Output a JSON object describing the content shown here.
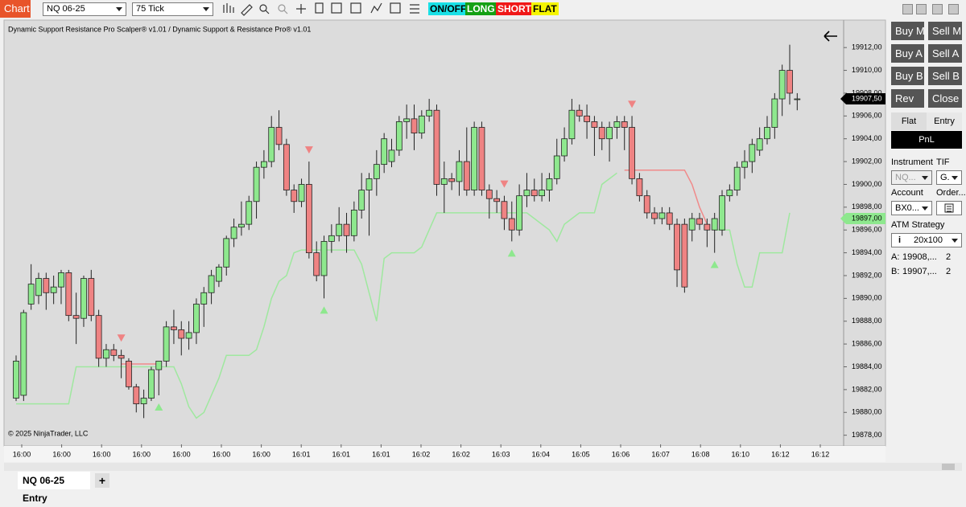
{
  "toolbar": {
    "app": "Chart",
    "instrument": "NQ 06-25",
    "interval": "75 Tick",
    "buttons": [
      "ON/OFF",
      "LONG",
      "SHORT",
      "FLAT"
    ]
  },
  "chart_data": {
    "type": "candlestick",
    "title": "Dynamic Support Resistance Pro Scalper® v1.01 / Dynamic Support & Resistance Pro® v1.01",
    "copyright": "© 2025 NinjaTrader, LLC",
    "up_color": "#8ee88e",
    "down_color": "#ef8383",
    "open": [
      19881.25,
      19881.5,
      19889.5,
      19890.25,
      19891.75,
      19890.5,
      19891,
      19892.25,
      19888.5,
      19888.25,
      19891.75,
      19888.5,
      19884.75,
      19885.5,
      19885,
      19884.5,
      19882.25,
      19880.75,
      19881.25,
      19883.75,
      19884.5,
      19887.5,
      19887.25,
      19886.5,
      19887,
      19889.5,
      19890.5,
      19891.5,
      19892.75,
      19895.25,
      19896.25,
      19896.5,
      19898.5,
      19901.5,
      19902,
      19905,
      19903.5,
      19899.5,
      19898.5,
      19900,
      19894,
      19892,
      19895,
      19895.5,
      19896.5,
      19895.5,
      19897.75,
      19899.5,
      19900.5,
      19901.75,
      19902,
      19903,
      19905.5,
      19905.75,
      19904.5,
      19906,
      19906.5,
      19900,
      19900.5,
      19900.25,
      19902,
      19899.5,
      19905,
      19899.5,
      19898.75,
      19898.5,
      19897,
      19896,
      19899,
      19899.5,
      19899,
      19899.5,
      19900.5,
      19902.5,
      19904,
      19906.5,
      19906,
      19905.5,
      19905,
      19904,
      19905,
      19905.5,
      19905,
      19900.5,
      19899,
      19897.5,
      19897,
      19897.5,
      19896.5,
      19896.5,
      19896,
      19897,
      19896.5,
      19896,
      19896,
      19899,
      19899.5,
      19901.5,
      19902,
      19903,
      19904,
      19905,
      19907.5,
      19910,
      19907.5
    ],
    "high": [
      19885,
      19889,
      19893,
      19892.25,
      19892.25,
      19892,
      19892.5,
      19892.5,
      19890.5,
      19892,
      19892.5,
      19889,
      19886,
      19886,
      19885.5,
      19884.75,
      19882.5,
      19882,
      19884,
      19884.5,
      19888,
      19889,
      19888,
      19888,
      19890,
      19891,
      19892.5,
      19893,
      19895.5,
      19897,
      19898.5,
      19899,
      19902,
      19903,
      19906,
      19906.5,
      19904,
      19900,
      19900.5,
      19902,
      19895,
      19895.5,
      19896.5,
      19898,
      19897.5,
      19898.5,
      19901,
      19901,
      19903,
      19904.5,
      19904,
      19906,
      19907,
      19907,
      19906.5,
      19907.5,
      19907,
      19902,
      19901,
      19903,
      19905,
      19905.5,
      19905.5,
      19900,
      19899.5,
      19899,
      19898.5,
      19900,
      19901,
      19900.5,
      19901,
      19901,
      19904,
      19905,
      19907.5,
      19907,
      19907,
      19906,
      19905.5,
      19905.5,
      19906,
      19906,
      19906,
      19901,
      19899.5,
      19898,
      19898,
      19898,
      19897,
      19897,
      19897.5,
      19897.5,
      19897,
      19897.5,
      19899.5,
      19900,
      19902,
      19903,
      19904,
      19905,
      19906,
      19908,
      19910.5,
      19912.25,
      19908
    ],
    "low": [
      19881,
      19881,
      19889,
      19889.5,
      19889,
      19889.5,
      19889.5,
      19888,
      19886,
      19887.5,
      19888,
      19884,
      19884,
      19884.5,
      19883,
      19882,
      19880,
      19879.5,
      19881,
      19881.5,
      19884,
      19886,
      19885,
      19885.5,
      19886,
      19887.5,
      19889.5,
      19891,
      19892,
      19894.5,
      19895.5,
      19896,
      19897,
      19900.5,
      19901.5,
      19903,
      19899,
      19897.5,
      19898,
      19893.5,
      19891.5,
      19890,
      19894,
      19895,
      19894,
      19895,
      19897,
      19895.5,
      19899,
      19901,
      19901.5,
      19902.5,
      19904,
      19903,
      19904,
      19905.5,
      19899,
      19897.5,
      19899.5,
      19899,
      19899,
      19899,
      19899,
      19897,
      19897.5,
      19896,
      19895,
      19895.5,
      19898,
      19898.5,
      19898.5,
      19898.5,
      19900,
      19902,
      19903.5,
      19905.5,
      19904,
      19902.5,
      19903,
      19902,
      19904,
      19903,
      19900,
      19898.5,
      19897,
      19896.5,
      19896.5,
      19896,
      19891,
      19890.5,
      19895,
      19896,
      19894.5,
      19894,
      19895.5,
      19898.5,
      19899,
      19900.5,
      19901,
      19902.5,
      19903.5,
      19904,
      19906,
      19907,
      19906.5
    ],
    "close": [
      19884.5,
      19888.75,
      19891.25,
      19891.75,
      19890.5,
      19891,
      19892.25,
      19888.5,
      19888.25,
      19891.75,
      19888.5,
      19884.75,
      19885.5,
      19885,
      19884.75,
      19882.25,
      19880.75,
      19881.25,
      19883.75,
      19884.5,
      19887.5,
      19887.25,
      19886.5,
      19887,
      19889.5,
      19890.5,
      19892,
      19892.75,
      19895.25,
      19896.25,
      19896.5,
      19898.5,
      19901.5,
      19902,
      19905,
      19903.5,
      19899.5,
      19898.5,
      19900,
      19894,
      19892,
      19895,
      19895.5,
      19896.5,
      19895.5,
      19897.75,
      19899.5,
      19900.5,
      19901.75,
      19904,
      19903,
      19905.5,
      19905.75,
      19904.5,
      19906,
      19906.5,
      19900,
      19900.5,
      19900.25,
      19902,
      19899.5,
      19905,
      19899.5,
      19898.75,
      19898.5,
      19897,
      19896,
      19899,
      19899.5,
      19899,
      19899.5,
      19900.5,
      19902.5,
      19904,
      19906.5,
      19906,
      19905.5,
      19905,
      19904,
      19905,
      19905.5,
      19905,
      19900.5,
      19899,
      19897.5,
      19897,
      19897.5,
      19896.5,
      19892.5,
      19891,
      19897,
      19896.5,
      19896,
      19897,
      19899,
      19899.5,
      19901.5,
      19902,
      19903.5,
      19904,
      19905,
      19907.5,
      19910,
      19908,
      19907.5
    ],
    "support_color": "#9fe89f",
    "support_values": [
      19880.75,
      19880.75,
      19880.75,
      19880.75,
      19880.75,
      19880.75,
      19880.75,
      19880.75,
      19884,
      19884,
      19884,
      19884,
      19884,
      19884,
      19884,
      19884,
      19884,
      19884,
      19884,
      19884,
      19884,
      19884,
      19882.5,
      19880.5,
      19879.5,
      19880,
      19881.5,
      19883,
      19885,
      19885,
      19885,
      19885,
      19885.5,
      19887.5,
      19890,
      19891.5,
      19892,
      19894,
      19894.25,
      19894.25,
      19894.25,
      19894.25,
      19894.25,
      19894.25,
      19894.25,
      19894.25,
      19893,
      19890.5,
      19888,
      19893.5,
      19894,
      19894,
      19894,
      19894,
      19894.5,
      19896,
      19897.5,
      19897.5,
      19897.5,
      19897.5,
      19897.5,
      19897.5,
      19897.5,
      19897.5,
      19897.5,
      19897.5,
      19897.5,
      19897.5,
      19897.5,
      19897,
      19896.5,
      19896,
      19895,
      19896.5,
      19897,
      19897.5,
      19897.5,
      19897.5,
      19900,
      19900.5,
      19901,
      null,
      null,
      null,
      null,
      null,
      null,
      null,
      null,
      null,
      null,
      null,
      null,
      19896,
      19896,
      19896,
      19893,
      19891,
      19891,
      19894,
      19894,
      19894,
      19894,
      19897.5,
      null
    ],
    "resistance_color": "#f08a8a",
    "resistance_values": [
      null,
      null,
      null,
      null,
      null,
      null,
      null,
      null,
      null,
      null,
      null,
      null,
      null,
      null,
      19884.25,
      19884.25,
      19884.25,
      19884.25,
      19884.25,
      19884.25,
      null,
      null,
      null,
      null,
      null,
      null,
      null,
      null,
      null,
      null,
      null,
      null,
      null,
      null,
      null,
      null,
      null,
      null,
      null,
      null,
      null,
      null,
      null,
      null,
      null,
      null,
      null,
      null,
      null,
      null,
      null,
      null,
      null,
      null,
      null,
      null,
      null,
      null,
      null,
      null,
      null,
      null,
      null,
      null,
      null,
      null,
      null,
      null,
      null,
      null,
      null,
      null,
      null,
      null,
      null,
      null,
      null,
      null,
      null,
      null,
      null,
      19901.25,
      19901.25,
      19901.25,
      19901.25,
      19901.25,
      19901.25,
      19901.25,
      19901.25,
      19901.25,
      19900,
      19898,
      19896.5,
      null,
      null,
      null,
      null,
      null,
      null,
      null,
      null,
      null,
      null,
      null,
      null
    ],
    "short_color": "#ef8383",
    "long_color": "#8ee88e",
    "short_signals": [
      14,
      39,
      65,
      82
    ],
    "long_signals": [
      19,
      41,
      66,
      93
    ],
    "x_labels": [
      "16:00",
      "16:00",
      "16:00",
      "16:00",
      "16:00",
      "16:00",
      "16:00",
      "16:01",
      "16:01",
      "16:01",
      "16:02",
      "16:02",
      "16:03",
      "16:04",
      "16:05",
      "16:06",
      "16:07",
      "16:08",
      "16:10",
      "16:12",
      "16:12"
    ],
    "ylim": [
      19877.2,
      19913
    ],
    "yticks": [
      {
        "value": 19878,
        "label": "19878,00"
      },
      {
        "value": 19880,
        "label": "19880,00"
      },
      {
        "value": 19882,
        "label": "19882,00"
      },
      {
        "value": 19884,
        "label": "19884,00"
      },
      {
        "value": 19886,
        "label": "19886,00"
      },
      {
        "value": 19888,
        "label": "19888,00"
      },
      {
        "value": 19890,
        "label": "19890,00"
      },
      {
        "value": 19892,
        "label": "19892,00"
      },
      {
        "value": 19894,
        "label": "19894,00"
      },
      {
        "value": 19896,
        "label": "19896,00"
      },
      {
        "value": 19898,
        "label": "19898,00"
      },
      {
        "value": 19900,
        "label": "19900,00"
      },
      {
        "value": 19902,
        "label": "19902,00"
      },
      {
        "value": 19904,
        "label": "19904,00"
      },
      {
        "value": 19906,
        "label": "19906,00"
      },
      {
        "value": 19908,
        "label": "19908,00"
      },
      {
        "value": 19910,
        "label": "19910,00"
      },
      {
        "value": 19912,
        "label": "19912,00"
      }
    ],
    "price_tags": [
      {
        "value": 19907.5,
        "label": "19907,50",
        "color": "#000000",
        "text_color": "#ffffff"
      },
      {
        "value": 19897,
        "label": "19897,00",
        "color": "#8ee88e",
        "text_color": "#000000"
      }
    ]
  },
  "tabs": [
    "NQ 06-25 Entry",
    "+"
  ],
  "order_panel": {
    "buttons": [
      "Buy M",
      "Sell M",
      "Buy A",
      "Sell A",
      "Buy B",
      "Sell B",
      "Rev",
      "Close"
    ],
    "tabs": [
      "Flat",
      "Entry"
    ],
    "pnl": "PnL",
    "instrument_label": "Instrument",
    "tif_label": "TIF",
    "instrument": "NQ...",
    "tif": "G.",
    "account_label": "Account",
    "order_label": "Order...",
    "account": "BX0...",
    "atm_label": "ATM Strategy",
    "atm_info": "i",
    "atm": "20x100",
    "ask_label": "A:",
    "ask": "19908,...",
    "ask_qty": "2",
    "bid_label": "B:",
    "bid": "19907,...",
    "bid_qty": "2"
  }
}
